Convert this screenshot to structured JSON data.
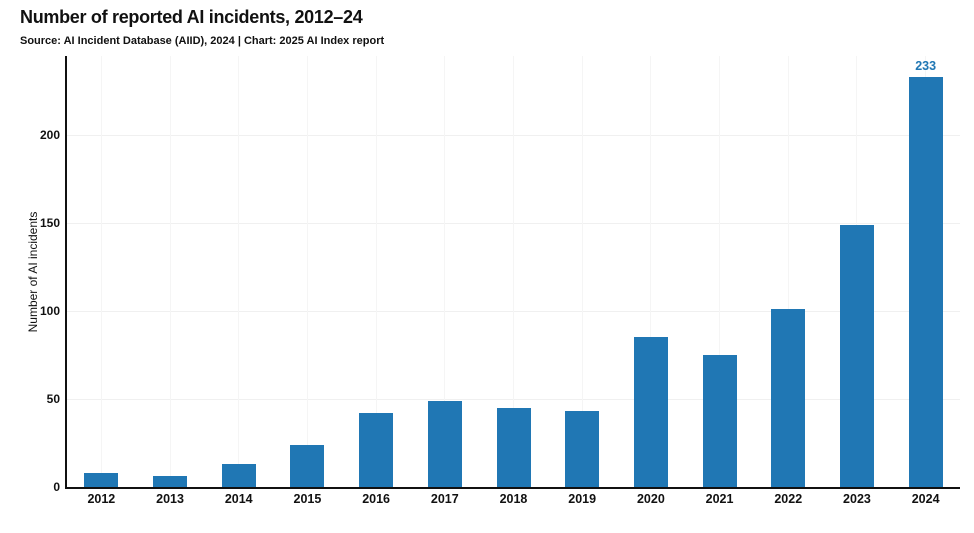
{
  "chart_data": {
    "type": "bar",
    "title": "Number of reported AI incidents, 2012–24",
    "subtitle": "Source: AI Incident Database (AIID), 2024 | Chart: 2025 AI Index report",
    "categories": [
      "2012",
      "2013",
      "2014",
      "2015",
      "2016",
      "2017",
      "2018",
      "2019",
      "2020",
      "2021",
      "2022",
      "2023",
      "2024"
    ],
    "values": [
      8,
      6,
      13,
      24,
      42,
      49,
      45,
      43,
      85,
      75,
      101,
      149,
      233
    ],
    "xlabel": "",
    "ylabel": "Number of AI incidents",
    "ylim": [
      0,
      245
    ],
    "yticks": [
      0,
      50,
      100,
      150,
      200
    ],
    "grid": true,
    "legend": "none",
    "bar_color": "#2077b4",
    "value_label_color": "#2077b4",
    "axis_color": "#111111",
    "value_labels": [
      {
        "category": "2024",
        "text": "233"
      }
    ]
  }
}
